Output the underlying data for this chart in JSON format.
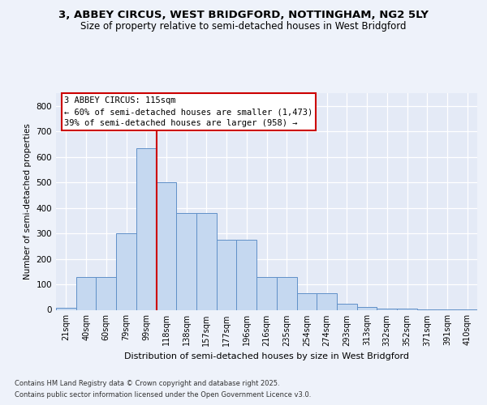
{
  "title1": "3, ABBEY CIRCUS, WEST BRIDGFORD, NOTTINGHAM, NG2 5LY",
  "title2": "Size of property relative to semi-detached houses in West Bridgford",
  "xlabel": "Distribution of semi-detached houses by size in West Bridgford",
  "ylabel": "Number of semi-detached properties",
  "categories": [
    "21sqm",
    "40sqm",
    "60sqm",
    "79sqm",
    "99sqm",
    "118sqm",
    "138sqm",
    "157sqm",
    "177sqm",
    "196sqm",
    "216sqm",
    "235sqm",
    "254sqm",
    "274sqm",
    "293sqm",
    "313sqm",
    "332sqm",
    "352sqm",
    "371sqm",
    "391sqm",
    "410sqm"
  ],
  "values": [
    8,
    128,
    128,
    300,
    635,
    500,
    380,
    380,
    275,
    275,
    130,
    130,
    65,
    65,
    25,
    12,
    5,
    5,
    3,
    2,
    1
  ],
  "bar_color": "#c5d8f0",
  "bar_edge_color": "#6090c8",
  "vline_color": "#cc0000",
  "annotation_title": "3 ABBEY CIRCUS: 115sqm",
  "annotation_line1": "← 60% of semi-detached houses are smaller (1,473)",
  "annotation_line2": "39% of semi-detached houses are larger (958) →",
  "annotation_box_edge_color": "#cc0000",
  "ylim": [
    0,
    850
  ],
  "yticks": [
    0,
    100,
    200,
    300,
    400,
    500,
    600,
    700,
    800
  ],
  "footnote1": "Contains HM Land Registry data © Crown copyright and database right 2025.",
  "footnote2": "Contains public sector information licensed under the Open Government Licence v3.0.",
  "bg_color": "#eef2fa",
  "plot_bg_color": "#e4eaf6"
}
